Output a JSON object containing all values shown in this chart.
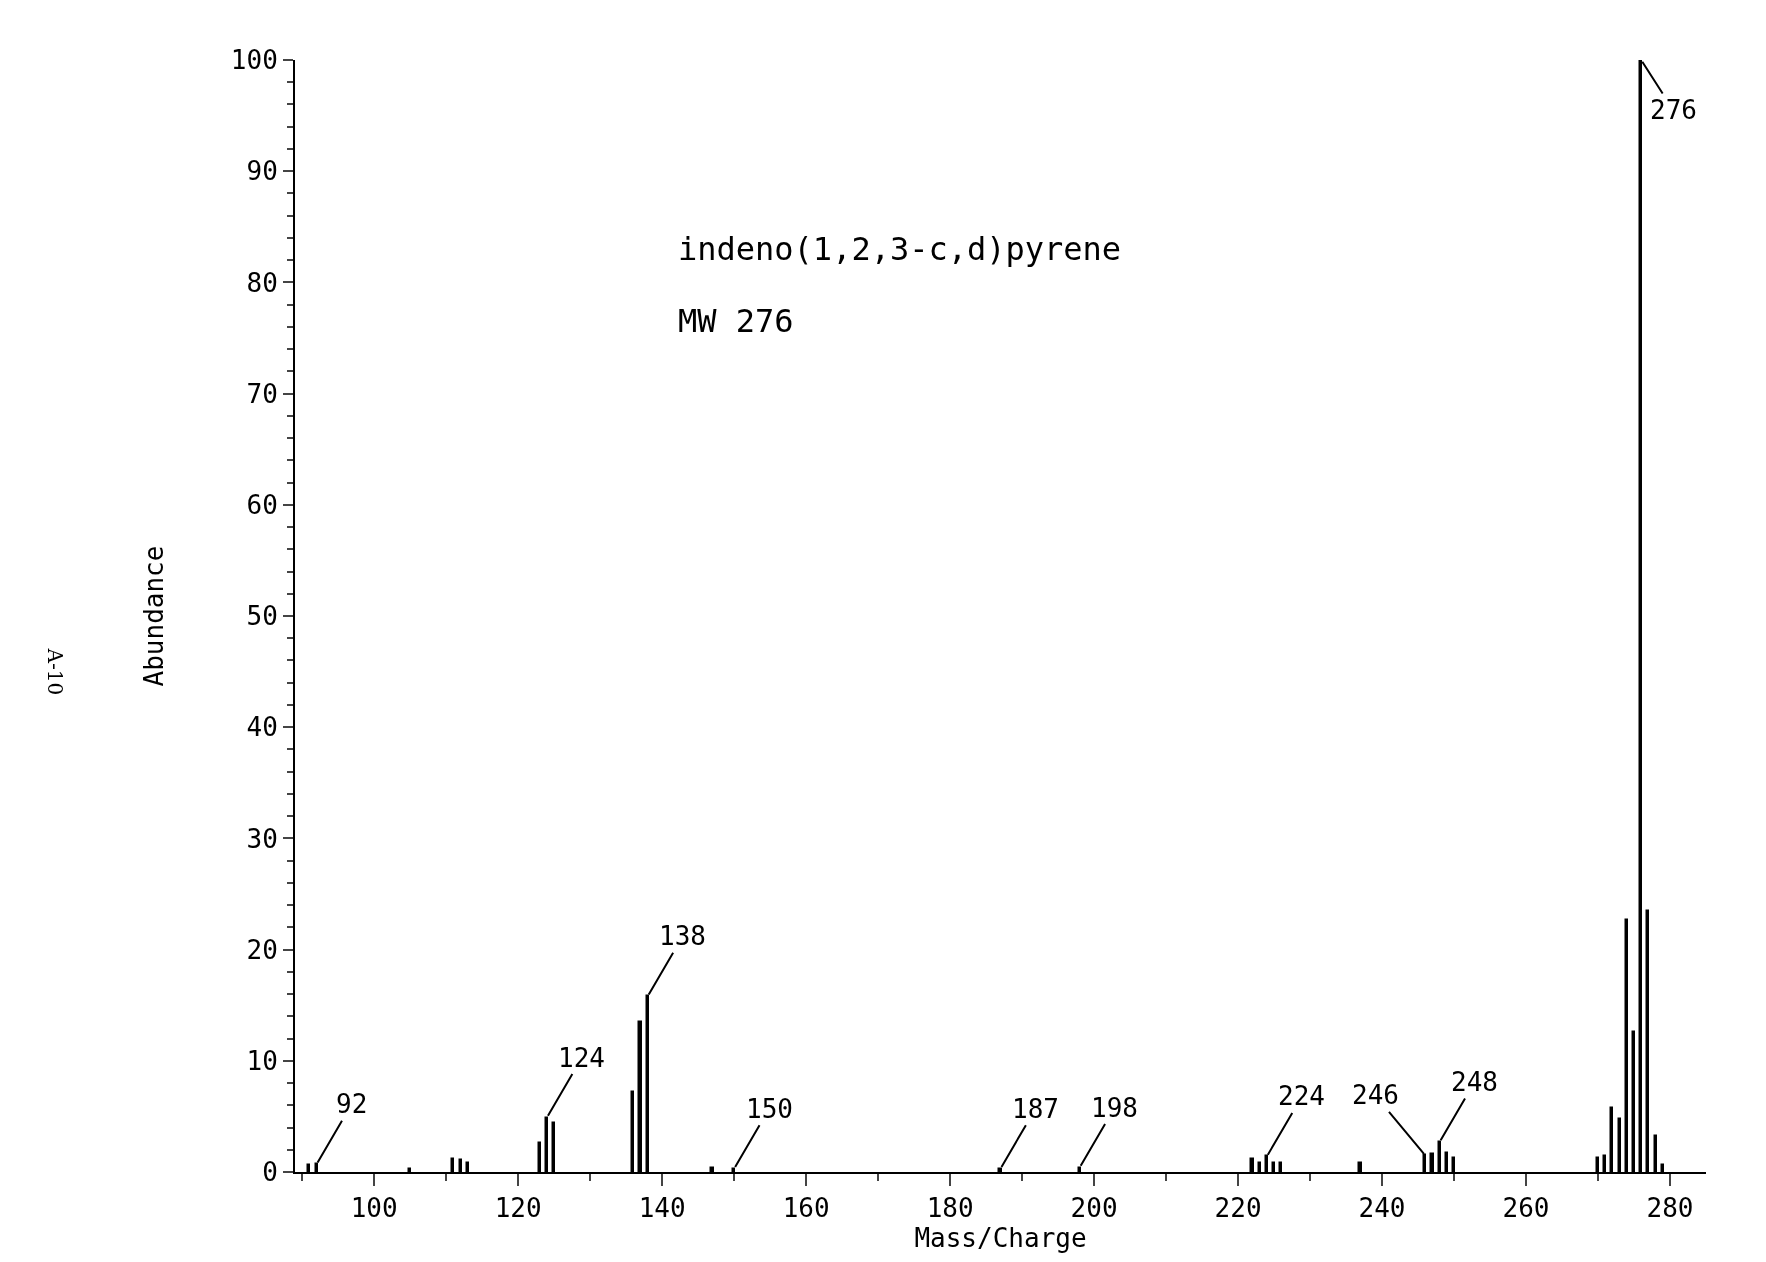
{
  "chart_data": {
    "type": "bar",
    "xlabel": "Mass/Charge",
    "ylabel": "Abundance",
    "x": [
      91,
      92,
      105,
      111,
      112,
      113,
      123,
      124,
      125,
      136,
      137,
      138,
      147,
      150,
      187,
      198,
      222,
      223,
      224,
      225,
      226,
      237,
      246,
      247,
      248,
      249,
      250,
      270,
      271,
      272,
      273,
      274,
      275,
      276,
      277,
      278,
      279
    ],
    "values": [
      0.6,
      0.7,
      0.3,
      1.2,
      1.1,
      0.8,
      2.6,
      4.9,
      4.4,
      7.2,
      13.5,
      15.8,
      0.4,
      0.3,
      0.3,
      0.4,
      1.2,
      0.8,
      1.4,
      0.8,
      0.8,
      0.8,
      1.5,
      1.6,
      2.7,
      1.7,
      1.3,
      1.3,
      1.4,
      5.8,
      4.8,
      22.7,
      12.6,
      100,
      23.5,
      3.2,
      0.6
    ],
    "color": "#000000",
    "xlim": [
      89,
      285
    ],
    "xticks": [
      100,
      120,
      140,
      160,
      180,
      200,
      220,
      240,
      260,
      280
    ],
    "ylim": [
      0,
      100
    ],
    "yticks": [
      0,
      10,
      20,
      30,
      40,
      50,
      60,
      70,
      80,
      90,
      100
    ],
    "grid": false,
    "annotations": [
      "indeno(1,2,3-c,d)pyrene",
      "MW 276",
      "A-10",
      {
        "text": "92",
        "x": 92,
        "y": 0.7
      },
      {
        "text": "124",
        "x": 124,
        "y": 4.9
      },
      {
        "text": "138",
        "x": 138,
        "y": 15.8
      },
      {
        "text": "150",
        "x": 150,
        "y": 0.3
      },
      {
        "text": "187",
        "x": 187,
        "y": 0.3
      },
      {
        "text": "198",
        "x": 198,
        "y": 0.4
      },
      {
        "text": "224",
        "x": 224,
        "y": 1.4
      },
      {
        "text": "246",
        "x": 246,
        "y": 1.5
      },
      {
        "text": "248",
        "x": 248,
        "y": 2.7
      },
      {
        "text": "276",
        "x": 276,
        "y": 100
      }
    ]
  }
}
